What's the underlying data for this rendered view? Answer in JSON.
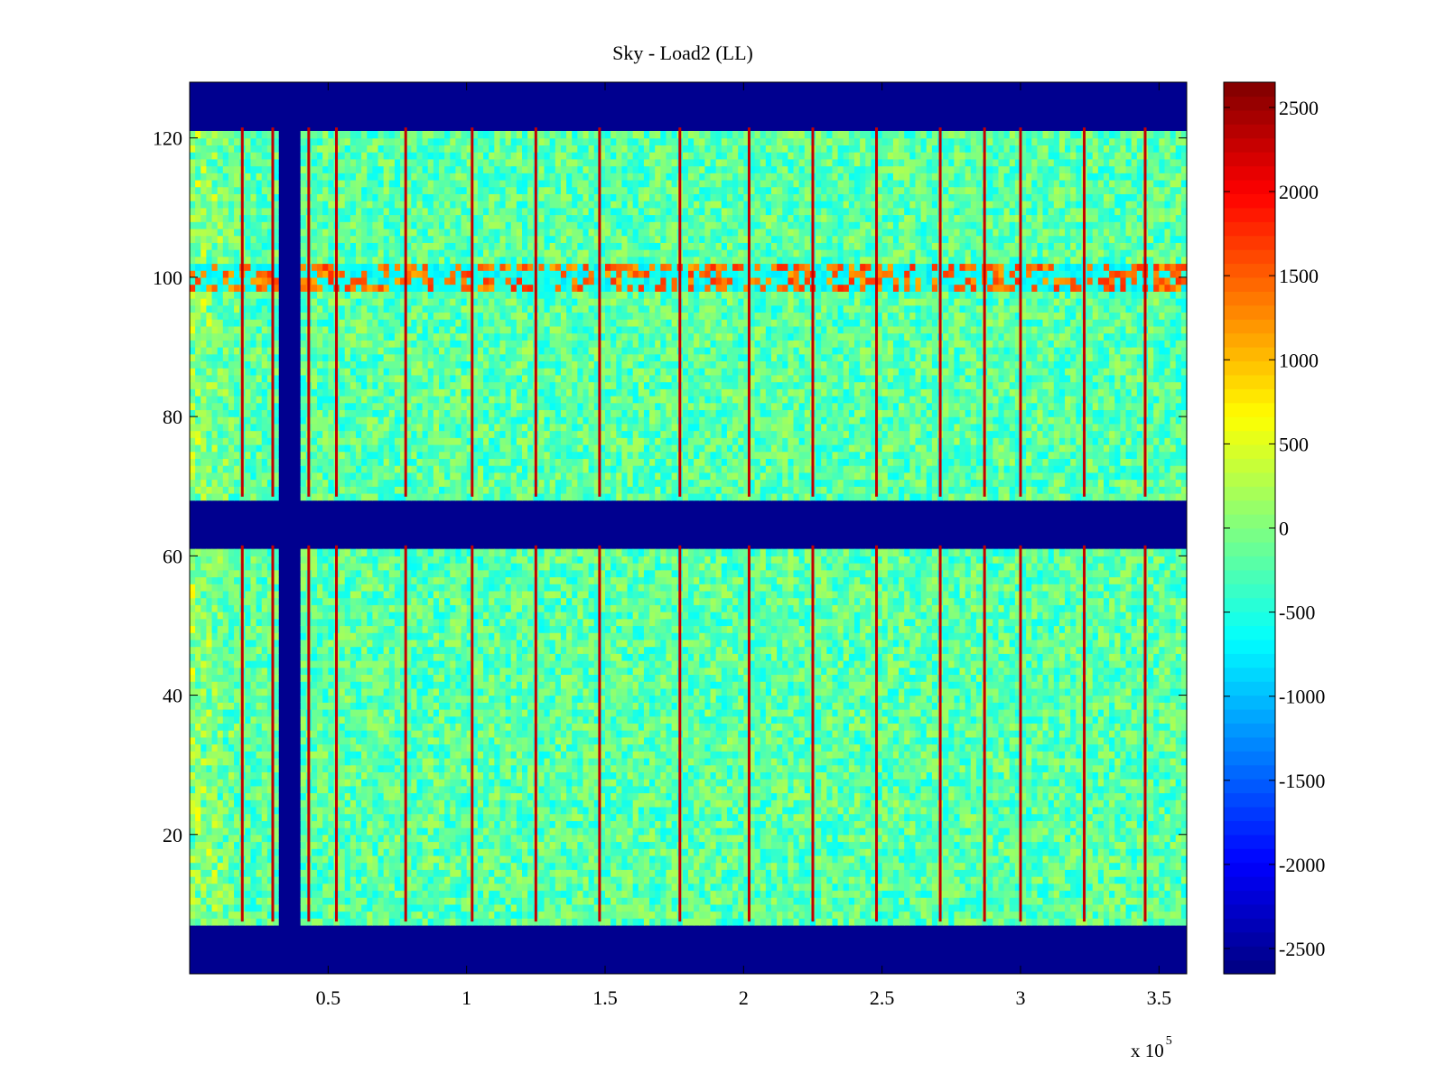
{
  "chart_data": {
    "type": "heatmap",
    "title": "Sky - Load2 (LL)",
    "xlabel": "",
    "ylabel": "",
    "x_exponent_base": "x 10",
    "x_exponent_power": "5",
    "xlim": [
      0,
      3.6
    ],
    "ylim": [
      0,
      128
    ],
    "x_ticks": [
      0.5,
      1,
      1.5,
      2,
      2.5,
      3,
      3.5
    ],
    "x_tick_labels": [
      "0.5",
      "1",
      "1.5",
      "2",
      "2.5",
      "3",
      "3.5"
    ],
    "y_ticks": [
      20,
      40,
      60,
      80,
      100,
      120
    ],
    "y_tick_labels": [
      "20",
      "40",
      "60",
      "80",
      "100",
      "120"
    ],
    "colormap": "jet",
    "clim": [
      -2650,
      2650
    ],
    "colorbar_ticks": [
      2500,
      2000,
      1500,
      1000,
      500,
      0,
      -500,
      -1000,
      -1500,
      -2000,
      -2500
    ],
    "colorbar_tick_labels": [
      "2500",
      "2000",
      "1500",
      "1000",
      "500",
      "0",
      "-500",
      "-1000",
      "-1500",
      "-2000",
      "-2500"
    ],
    "background_value": -200,
    "masked_value": -2650,
    "masked_row_ranges": [
      [
        0,
        7.5
      ],
      [
        61.5,
        68.5
      ],
      [
        121.5,
        128
      ]
    ],
    "masked_column_ranges": [
      [
        0.32,
        0.41
      ]
    ],
    "bright_column_positions": [
      0.19,
      0.3,
      0.43,
      0.53,
      0.78,
      1.02,
      1.25,
      1.48,
      1.77,
      2.02,
      2.25,
      2.48,
      2.71,
      2.87,
      3.0,
      3.23,
      3.45
    ],
    "bright_row": {
      "y_range": [
        98,
        102
      ],
      "value": 1800
    },
    "warm_edge": {
      "x_range": [
        0,
        0.2
      ],
      "value": 600
    }
  }
}
